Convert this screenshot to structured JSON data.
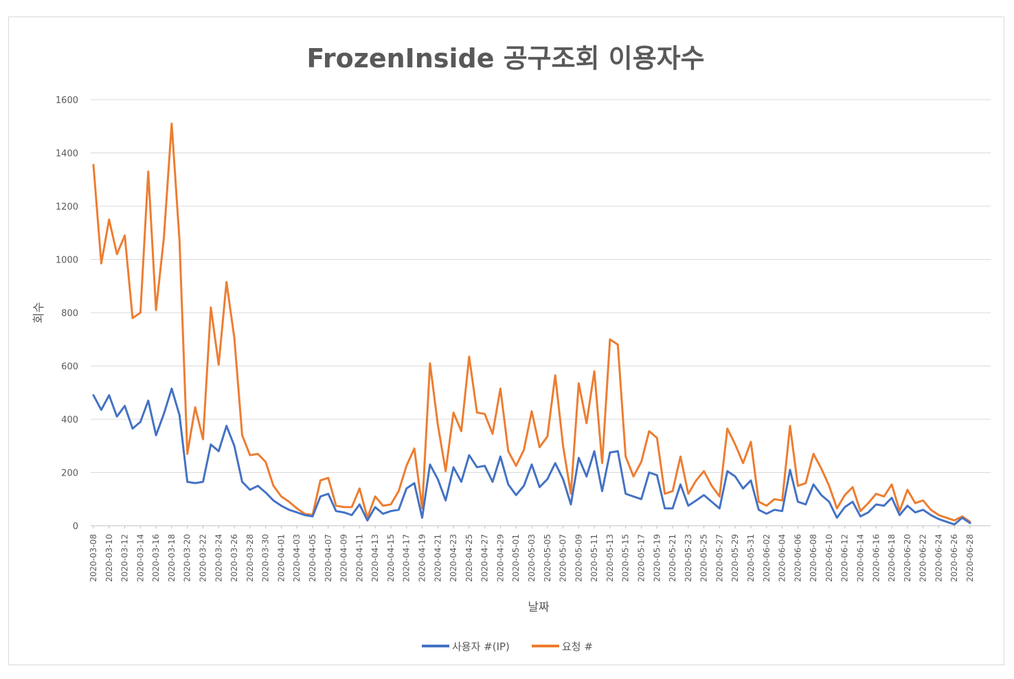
{
  "chart_data": {
    "type": "line",
    "title": "FrozenInside 공구조회 이용자수",
    "xlabel": "날짜",
    "ylabel": "회수",
    "ylim": [
      0,
      1600
    ],
    "yticks": [
      0,
      200,
      400,
      600,
      800,
      1000,
      1200,
      1400,
      1600
    ],
    "grid": true,
    "legend_position": "bottom",
    "x_start": "2020-03-08",
    "x_end": "2020-06-28",
    "x_tick_labels": [
      "2020-03-08",
      "2020-03-10",
      "2020-03-12",
      "2020-03-14",
      "2020-03-16",
      "2020-03-18",
      "2020-03-20",
      "2020-03-22",
      "2020-03-24",
      "2020-03-26",
      "2020-03-28",
      "2020-03-30",
      "2020-04-01",
      "2020-04-03",
      "2020-04-05",
      "2020-04-07",
      "2020-04-09",
      "2020-04-11",
      "2020-04-13",
      "2020-04-15",
      "2020-04-17",
      "2020-04-19",
      "2020-04-21",
      "2020-04-23",
      "2020-04-25",
      "2020-04-27",
      "2020-04-29",
      "2020-05-01",
      "2020-05-03",
      "2020-05-05",
      "2020-05-07",
      "2020-05-09",
      "2020-05-11",
      "2020-05-13",
      "2020-05-15",
      "2020-05-17",
      "2020-05-19",
      "2020-05-21",
      "2020-05-23",
      "2020-05-25",
      "2020-05-27",
      "2020-05-29",
      "2020-05-31",
      "2020-06-02",
      "2020-06-04",
      "2020-06-06",
      "2020-06-08",
      "2020-06-10",
      "2020-06-12",
      "2020-06-14",
      "2020-06-16",
      "2020-06-18",
      "2020-06-20",
      "2020-06-22",
      "2020-06-24",
      "2020-06-26",
      "2020-06-28"
    ],
    "series": [
      {
        "name": "사용자 #(IP)",
        "color": "#4472c4",
        "values": [
          490,
          435,
          490,
          410,
          450,
          365,
          390,
          470,
          340,
          420,
          515,
          415,
          165,
          160,
          165,
          305,
          280,
          375,
          300,
          165,
          135,
          150,
          125,
          95,
          75,
          60,
          50,
          40,
          35,
          110,
          120,
          55,
          50,
          40,
          80,
          20,
          70,
          45,
          55,
          60,
          140,
          160,
          30,
          230,
          175,
          95,
          220,
          165,
          265,
          220,
          225,
          165,
          260,
          155,
          115,
          150,
          230,
          145,
          175,
          235,
          175,
          80,
          255,
          185,
          280,
          130,
          275,
          280,
          120,
          110,
          100,
          200,
          190,
          65,
          65,
          155,
          75,
          95,
          115,
          90,
          65,
          205,
          185,
          140,
          170,
          60,
          45,
          60,
          55,
          210,
          90,
          80,
          155,
          115,
          90,
          30,
          70,
          90,
          35,
          50,
          80,
          75,
          105,
          40,
          75,
          50,
          60,
          40,
          25,
          15,
          5,
          30,
          10
        ]
      },
      {
        "name": "요청 #",
        "color": "#ed7d31",
        "values": [
          1355,
          985,
          1150,
          1020,
          1090,
          780,
          800,
          1330,
          810,
          1080,
          1510,
          1070,
          270,
          445,
          325,
          820,
          605,
          915,
          705,
          340,
          265,
          270,
          240,
          150,
          110,
          90,
          65,
          45,
          40,
          170,
          180,
          75,
          70,
          70,
          140,
          30,
          110,
          75,
          80,
          130,
          225,
          290,
          65,
          610,
          380,
          205,
          425,
          355,
          635,
          425,
          420,
          345,
          515,
          280,
          225,
          285,
          430,
          295,
          335,
          565,
          300,
          120,
          535,
          385,
          580,
          235,
          700,
          680,
          260,
          185,
          240,
          355,
          330,
          120,
          130,
          260,
          120,
          170,
          205,
          150,
          110,
          365,
          305,
          235,
          315,
          90,
          75,
          100,
          95,
          375,
          150,
          160,
          270,
          215,
          150,
          65,
          115,
          145,
          55,
          85,
          120,
          110,
          155,
          55,
          135,
          85,
          95,
          60,
          40,
          30,
          20,
          35,
          15
        ]
      }
    ]
  }
}
